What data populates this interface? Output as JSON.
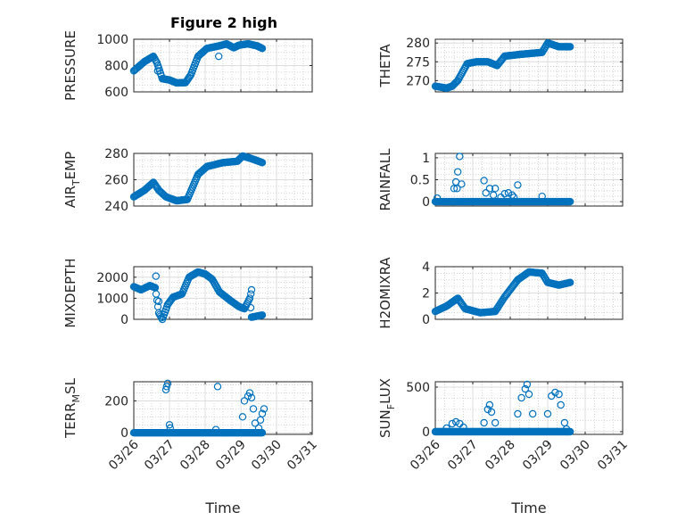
{
  "figure": {
    "title": "Figure 2 high",
    "marker_color": "#0072BD",
    "x_tick_labels": [
      "03/26",
      "03/27",
      "03/28",
      "03/29",
      "03/30",
      "03/31"
    ],
    "x_label": "Time"
  },
  "chart_data": [
    {
      "type": "scatter",
      "ylabel": "PRESSURE",
      "ylim": [
        600,
        1000
      ],
      "yticks": [
        600,
        800,
        1000
      ],
      "ytick_labels": [
        "600",
        "800",
        "1000"
      ],
      "xlim": [
        0,
        5
      ],
      "grid": true,
      "anchors": [
        [
          0,
          760
        ],
        [
          0.3,
          830
        ],
        [
          0.55,
          870
        ],
        [
          0.65,
          820
        ],
        [
          0.8,
          700
        ],
        [
          1.0,
          690
        ],
        [
          1.2,
          668
        ],
        [
          1.45,
          670
        ],
        [
          1.6,
          730
        ],
        [
          1.8,
          870
        ],
        [
          2.05,
          930
        ],
        [
          2.4,
          950
        ],
        [
          2.6,
          965
        ],
        [
          2.8,
          935
        ],
        [
          2.95,
          955
        ],
        [
          3.2,
          965
        ],
        [
          3.45,
          950
        ],
        [
          3.6,
          930
        ]
      ],
      "outliers": [
        [
          0.67,
          760
        ],
        [
          2.38,
          870
        ]
      ]
    },
    {
      "type": "scatter",
      "ylabel": "THETA",
      "ylim": [
        267,
        281
      ],
      "yticks": [
        270,
        275,
        280
      ],
      "ytick_labels": [
        "270",
        "275",
        "280"
      ],
      "xlim": [
        0,
        5
      ],
      "grid": true,
      "anchors": [
        [
          0,
          268.5
        ],
        [
          0.3,
          268
        ],
        [
          0.45,
          268.5
        ],
        [
          0.6,
          270
        ],
        [
          0.85,
          274.5
        ],
        [
          1.1,
          275
        ],
        [
          1.4,
          275
        ],
        [
          1.65,
          274
        ],
        [
          1.85,
          276.5
        ],
        [
          2.3,
          277
        ],
        [
          2.85,
          277.5
        ],
        [
          3.0,
          280
        ],
        [
          3.3,
          279
        ],
        [
          3.6,
          279
        ]
      ],
      "outliers": []
    },
    {
      "type": "scatter",
      "ylabel": "AIR_TEMP",
      "ylim": [
        240,
        280
      ],
      "yticks": [
        240,
        260,
        280
      ],
      "ytick_labels": [
        "240",
        "260",
        "280"
      ],
      "xlim": [
        0,
        5
      ],
      "grid": true,
      "anchors": [
        [
          0,
          247
        ],
        [
          0.3,
          252
        ],
        [
          0.55,
          258
        ],
        [
          0.7,
          252
        ],
        [
          0.9,
          247
        ],
        [
          1.2,
          244
        ],
        [
          1.5,
          245
        ],
        [
          1.8,
          264
        ],
        [
          2.05,
          270
        ],
        [
          2.5,
          273
        ],
        [
          2.9,
          274
        ],
        [
          3.05,
          278
        ],
        [
          3.3,
          276
        ],
        [
          3.6,
          273
        ]
      ],
      "outliers": []
    },
    {
      "type": "scatter",
      "ylabel": "RAINFALL",
      "ylim": [
        -0.1,
        1.1
      ],
      "yticks": [
        0,
        0.5,
        1
      ],
      "ytick_labels": [
        "0",
        "0.5",
        "1"
      ],
      "xlim": [
        0,
        5
      ],
      "grid": true,
      "anchors": [
        [
          0,
          0
        ],
        [
          3.6,
          0
        ]
      ],
      "outliers": [
        [
          0.05,
          0.08
        ],
        [
          0.5,
          0.3
        ],
        [
          0.55,
          0.45
        ],
        [
          0.6,
          0.68
        ],
        [
          0.65,
          1.03
        ],
        [
          0.7,
          0.4
        ],
        [
          0.58,
          0.3
        ],
        [
          1.3,
          0.48
        ],
        [
          1.35,
          0.2
        ],
        [
          1.45,
          0.3
        ],
        [
          1.55,
          0.15
        ],
        [
          1.6,
          0.3
        ],
        [
          1.75,
          0.1
        ],
        [
          1.85,
          0.18
        ],
        [
          1.95,
          0.2
        ],
        [
          2.05,
          0.15
        ],
        [
          2.2,
          0.38
        ],
        [
          2.1,
          0.1
        ],
        [
          2.85,
          0.12
        ]
      ]
    },
    {
      "type": "scatter",
      "ylabel": "MIXDEPTH",
      "ylim": [
        0,
        2500
      ],
      "yticks": [
        0,
        1000,
        2000
      ],
      "ytick_labels": [
        "0",
        "1000",
        "2000"
      ],
      "xlim": [
        0,
        5
      ],
      "grid": true,
      "anchors": [
        [
          0,
          1550
        ],
        [
          0.2,
          1400
        ],
        [
          0.45,
          1600
        ],
        [
          0.6,
          1500
        ],
        [
          0.7,
          300
        ],
        [
          0.8,
          0
        ],
        [
          0.95,
          700
        ],
        [
          1.1,
          1050
        ],
        [
          1.35,
          1200
        ],
        [
          1.55,
          2000
        ],
        [
          1.8,
          2250
        ],
        [
          2.0,
          2150
        ],
        [
          2.2,
          1900
        ],
        [
          2.4,
          1300
        ],
        [
          2.7,
          900
        ],
        [
          2.95,
          600
        ],
        [
          3.1,
          500
        ],
        [
          3.25,
          1000
        ],
        [
          3.3,
          100
        ],
        [
          3.6,
          200
        ]
      ],
      "outliers": [
        [
          0.62,
          2050
        ],
        [
          0.7,
          850
        ],
        [
          3.3,
          1400
        ],
        [
          3.28,
          1200
        ]
      ]
    },
    {
      "type": "scatter",
      "ylabel": "H2OMIXRA",
      "ylim": [
        0,
        4
      ],
      "yticks": [
        0,
        2,
        4
      ],
      "ytick_labels": [
        "0",
        "2",
        "4"
      ],
      "xlim": [
        0,
        5
      ],
      "grid": true,
      "anchors": [
        [
          0,
          0.6
        ],
        [
          0.3,
          1.0
        ],
        [
          0.6,
          1.6
        ],
        [
          0.8,
          0.8
        ],
        [
          1.2,
          0.5
        ],
        [
          1.6,
          0.6
        ],
        [
          1.85,
          1.7
        ],
        [
          2.2,
          3.0
        ],
        [
          2.5,
          3.6
        ],
        [
          2.85,
          3.5
        ],
        [
          3.0,
          2.8
        ],
        [
          3.3,
          2.6
        ],
        [
          3.6,
          2.8
        ]
      ],
      "outliers": []
    },
    {
      "type": "scatter",
      "ylabel": "TERR_MSL",
      "ylim": [
        -10,
        320
      ],
      "yticks": [
        0,
        200
      ],
      "ytick_labels": [
        "0",
        "200"
      ],
      "xlim": [
        0,
        5
      ],
      "grid": true,
      "anchors": [
        [
          0,
          0
        ],
        [
          3.6,
          0
        ]
      ],
      "outliers": [
        [
          0.9,
          270
        ],
        [
          0.95,
          310
        ],
        [
          0.92,
          290
        ],
        [
          1.0,
          50
        ],
        [
          1.02,
          30
        ],
        [
          2.35,
          290
        ],
        [
          2.3,
          20
        ],
        [
          3.05,
          100
        ],
        [
          3.1,
          200
        ],
        [
          3.2,
          230
        ],
        [
          3.25,
          250
        ],
        [
          3.3,
          220
        ],
        [
          3.35,
          150
        ],
        [
          3.4,
          60
        ],
        [
          3.5,
          30
        ],
        [
          3.55,
          80
        ],
        [
          3.6,
          120
        ],
        [
          3.65,
          150
        ]
      ]
    },
    {
      "type": "scatter",
      "ylabel": "SUN_FLUX",
      "ylim": [
        -30,
        560
      ],
      "yticks": [
        0,
        500
      ],
      "ytick_labels": [
        "0",
        "500"
      ],
      "xlim": [
        0,
        5
      ],
      "grid": true,
      "anchors": [
        [
          0,
          0
        ],
        [
          3.6,
          0
        ]
      ],
      "outliers": [
        [
          0.3,
          40
        ],
        [
          0.45,
          90
        ],
        [
          0.55,
          110
        ],
        [
          0.65,
          90
        ],
        [
          0.75,
          50
        ],
        [
          1.3,
          100
        ],
        [
          1.4,
          250
        ],
        [
          1.45,
          300
        ],
        [
          1.5,
          220
        ],
        [
          1.6,
          100
        ],
        [
          2.2,
          200
        ],
        [
          2.3,
          380
        ],
        [
          2.4,
          480
        ],
        [
          2.45,
          530
        ],
        [
          2.5,
          420
        ],
        [
          2.6,
          200
        ],
        [
          3.0,
          200
        ],
        [
          3.1,
          400
        ],
        [
          3.2,
          440
        ],
        [
          3.3,
          420
        ],
        [
          3.35,
          300
        ],
        [
          3.45,
          100
        ],
        [
          3.5,
          30
        ]
      ]
    }
  ]
}
